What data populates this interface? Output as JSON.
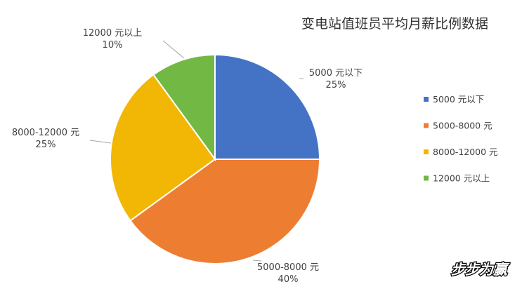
{
  "chart_data": {
    "type": "pie",
    "title": "变电站值班员平均月薪比例数据",
    "categories": [
      "5000 元以下",
      "5000-8000 元",
      "8000-12000 元",
      "12000 元以上"
    ],
    "values": [
      25,
      40,
      25,
      10
    ],
    "percent_labels": [
      "25%",
      "40%",
      "25%",
      "10%"
    ],
    "colors": [
      "#4472C4",
      "#ED7D31",
      "#F2B705",
      "#72B844"
    ],
    "legend_position": "right",
    "start_angle": "12 o'clock, clockwise"
  },
  "watermark": "步步为赢"
}
